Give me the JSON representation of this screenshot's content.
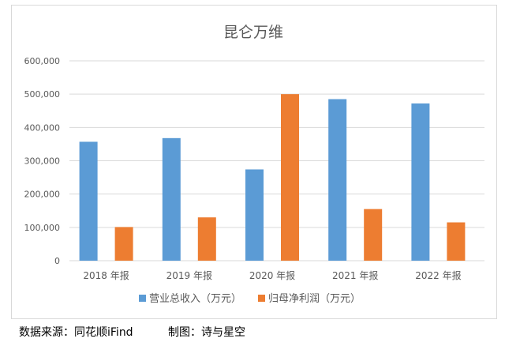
{
  "chart_data": {
    "type": "bar",
    "title": "昆仑万维",
    "categories": [
      "2018 年报",
      "2019 年报",
      "2020 年报",
      "2021 年报",
      "2022 年报"
    ],
    "series": [
      {
        "name": "营业总收入（万元）",
        "color": "#5b9bd5",
        "values": [
          357000,
          368000,
          274000,
          485000,
          472000
        ]
      },
      {
        "name": "归母净利润（万元）",
        "color": "#ed7d31",
        "values": [
          101000,
          130000,
          500000,
          155000,
          115000
        ]
      }
    ],
    "yticks": [
      "0",
      "100,000",
      "200,000",
      "300,000",
      "400,000",
      "500,000",
      "600,000"
    ],
    "ylim": [
      0,
      600000
    ],
    "grid": true,
    "legend_position": "bottom"
  },
  "footer": {
    "source": "数据来源：同花顺iFind",
    "credit": "制图：诗与星空"
  }
}
